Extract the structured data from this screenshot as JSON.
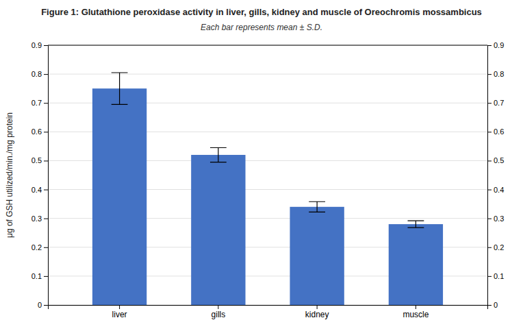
{
  "chart_data": {
    "type": "bar",
    "title": "Figure 1: Glutathione peroxidase activity in liver, gills, kidney and muscle of Oreochromis mossambicus",
    "subtitle": "Each bar represents mean ± S.D.",
    "y_label": "μg of GSH utilized/min./mg protein",
    "categories": [
      "liver",
      "gills",
      "kidney",
      "muscle"
    ],
    "values": [
      0.75,
      0.52,
      0.34,
      0.28
    ],
    "errors": [
      0.055,
      0.025,
      0.018,
      0.012
    ],
    "color": "#4472C4",
    "ylim": [
      0,
      0.9
    ],
    "yticks": [
      0,
      0.1,
      0.2,
      0.3,
      0.4,
      0.5,
      0.6,
      0.7,
      0.8,
      0.9
    ],
    "y2lim": [
      0,
      0.9
    ],
    "y2ticks": [
      0,
      0.1,
      0.2,
      0.3,
      0.4,
      0.5,
      0.6,
      0.7,
      0.8,
      0.9
    ],
    "grid": true
  }
}
